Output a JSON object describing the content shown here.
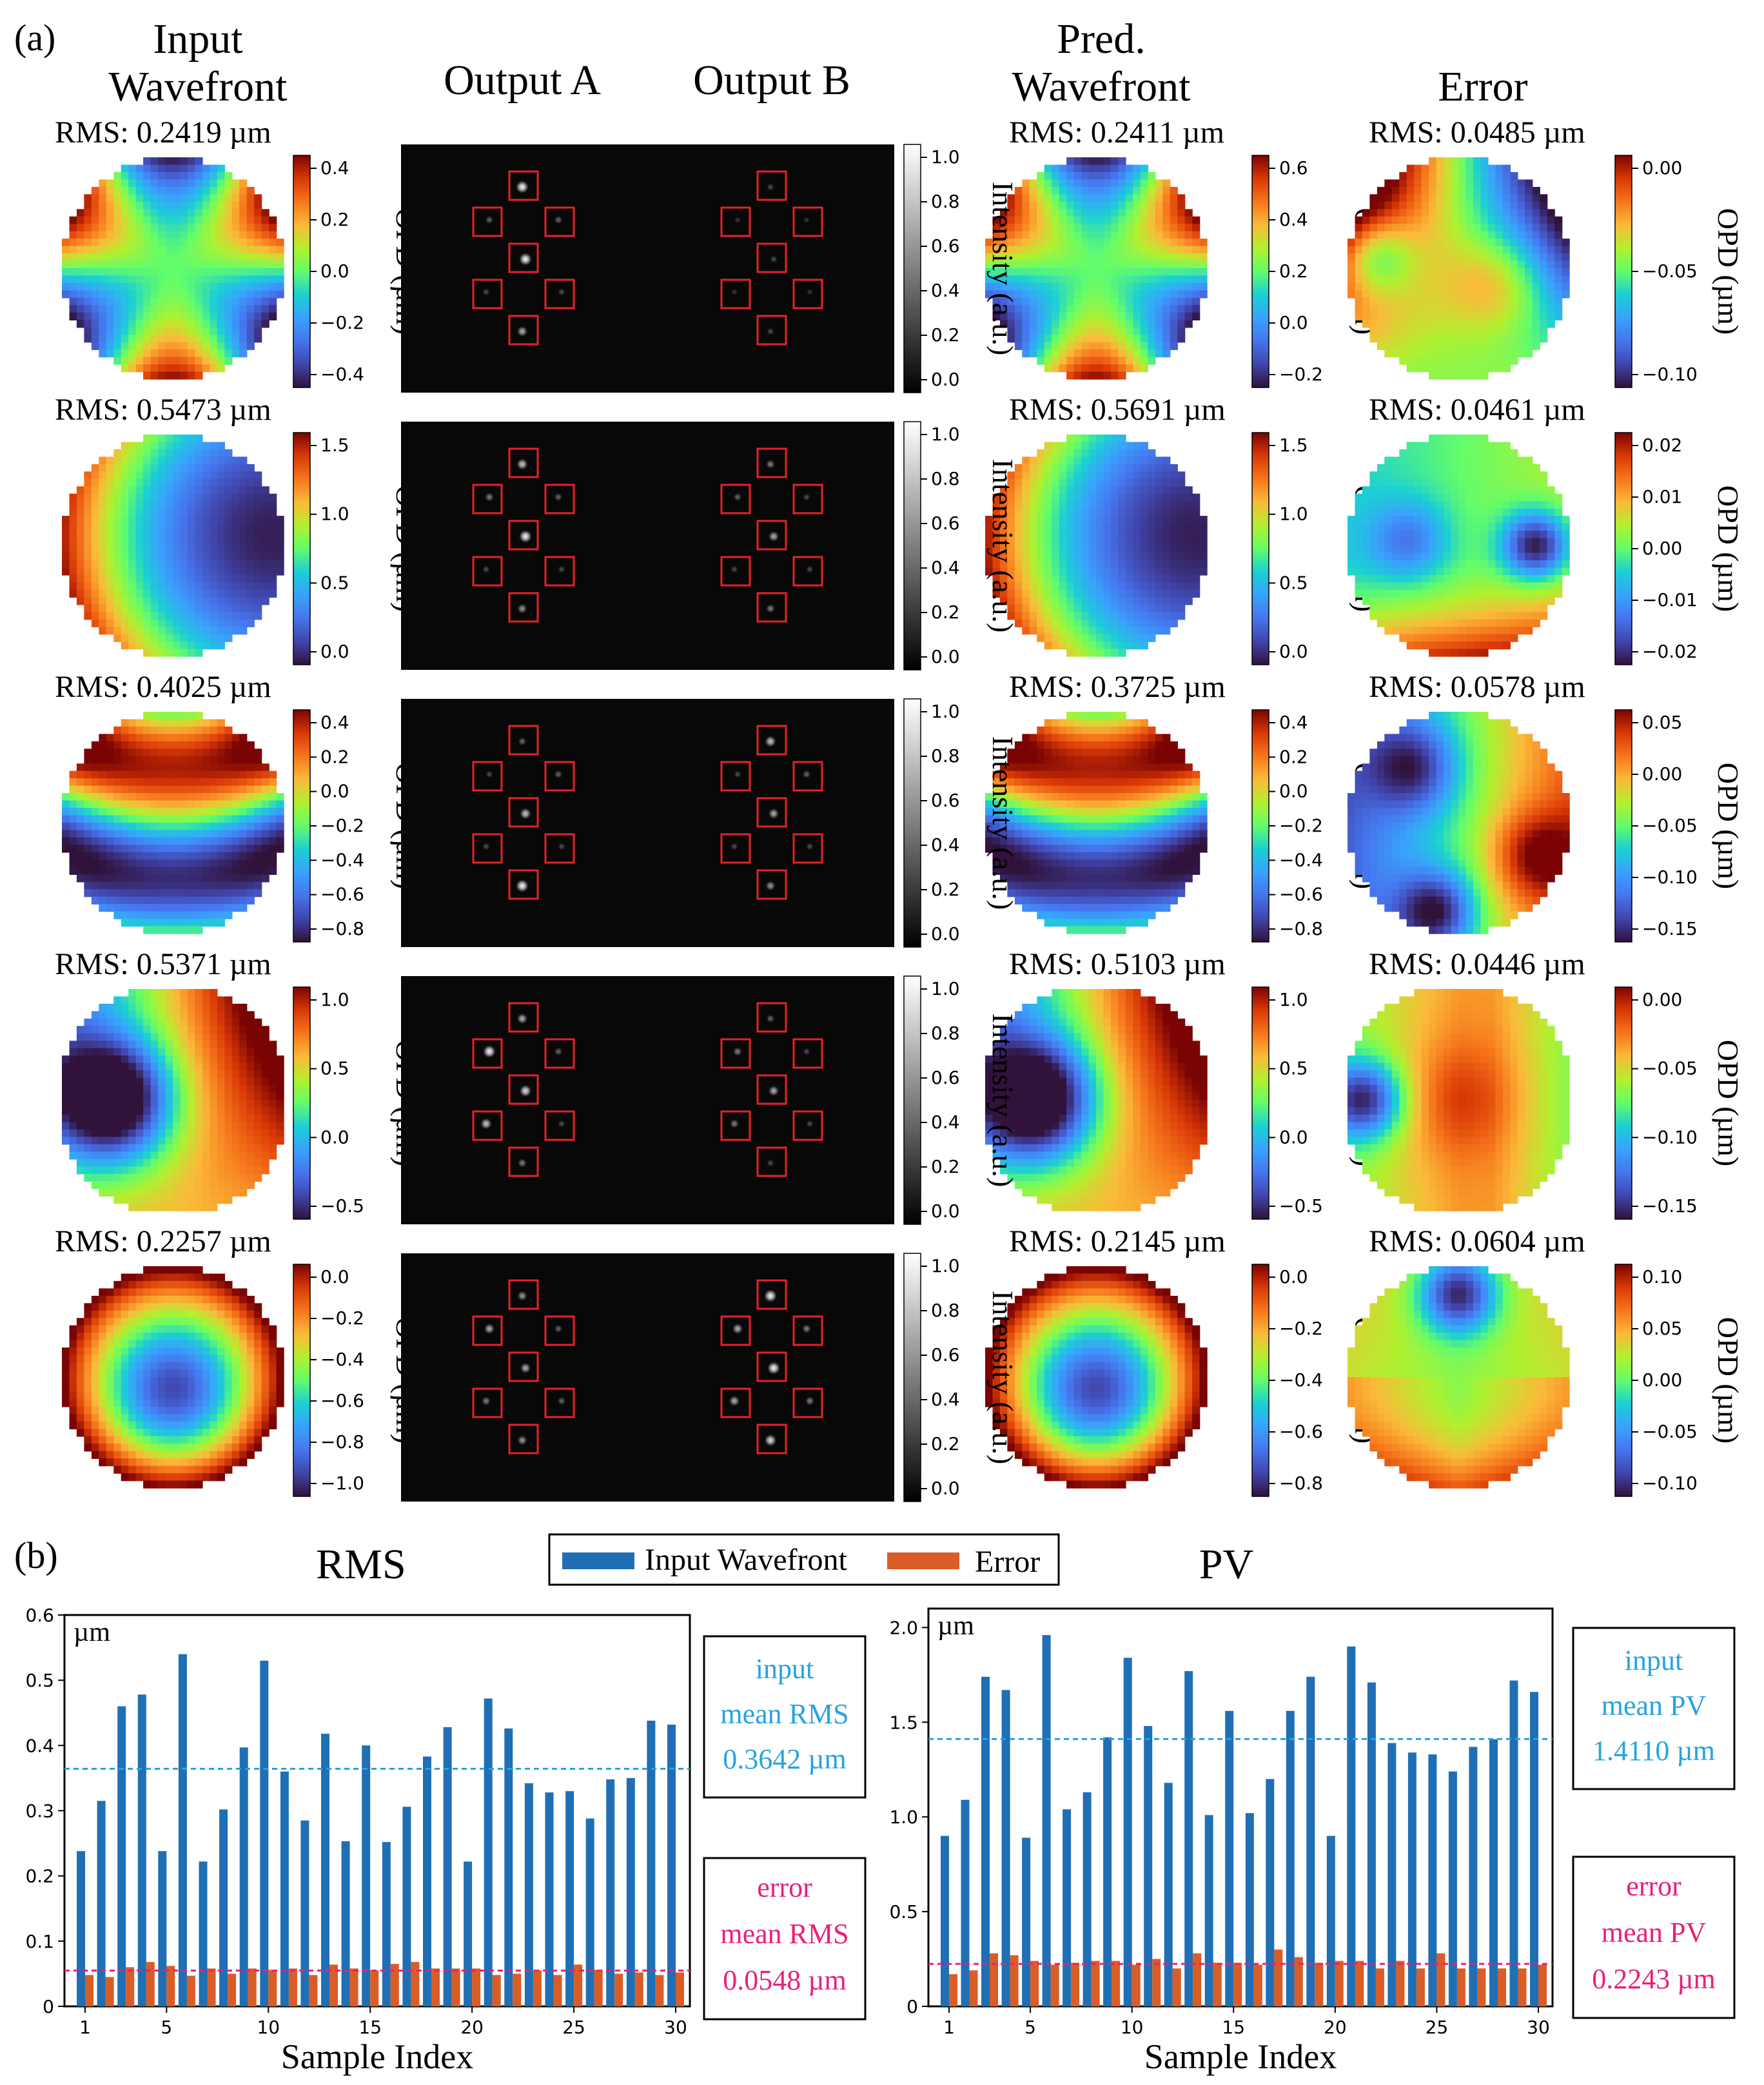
{
  "panel_a": {
    "label": "(a)",
    "column_titles": [
      [
        "Input",
        "Wavefront"
      ],
      [
        "Output A"
      ],
      [
        "Output B"
      ],
      [
        "Pred.",
        "Wavefront"
      ],
      [
        "Error"
      ]
    ],
    "colorbar_label_opd": "OPD (µm)",
    "colorbar_label_intensity": "Intensity (a.u.)",
    "intensity_ticks": [
      "0.0",
      "0.2",
      "0.4",
      "0.6",
      "0.8",
      "1.0"
    ],
    "rows": [
      {
        "input": {
          "rms": "RMS: 0.2419 µm",
          "ticks": [
            "0.4",
            "0.2",
            "0.0",
            "−0.2",
            "−0.4"
          ],
          "pattern": "trefoil",
          "stair": "fine"
        },
        "pred": {
          "rms": "RMS: 0.2411 µm",
          "ticks": [
            "0.6",
            "0.4",
            "0.2",
            "0.0",
            "−0.2"
          ],
          "pattern": "trefoil",
          "stair": "fine"
        },
        "error": {
          "rms": "RMS: 0.0485 µm",
          "ticks": [
            "0.00",
            "−0.05",
            "−0.10"
          ],
          "pattern": "error1",
          "stair": "fine"
        },
        "spots_a": [
          1,
          0.4,
          0.4,
          1,
          0.3,
          0.3,
          0.7
        ],
        "spots_b": [
          0.3,
          0.2,
          0.2,
          0.3,
          0.2,
          0.2,
          0.3
        ]
      },
      {
        "input": {
          "rms": "RMS: 0.5473 µm",
          "ticks": [
            "1.5",
            "1.0",
            "0.5",
            "0.0"
          ],
          "pattern": "tilt_right",
          "stair": "fine"
        },
        "pred": {
          "rms": "RMS: 0.5691 µm",
          "ticks": [
            "1.5",
            "1.0",
            "0.5",
            "0.0"
          ],
          "pattern": "tilt_right",
          "stair": "fine"
        },
        "error": {
          "rms": "RMS: 0.0461 µm",
          "ticks": [
            "0.02",
            "0.01",
            "0.00",
            "−0.01",
            "−0.02"
          ],
          "pattern": "error2",
          "stair": "fine"
        },
        "spots_a": [
          0.8,
          0.5,
          0.4,
          1,
          0.3,
          0.3,
          0.6
        ],
        "spots_b": [
          0.5,
          0.4,
          0.3,
          0.7,
          0.3,
          0.3,
          0.5
        ]
      },
      {
        "input": {
          "rms": "RMS: 0.4025 µm",
          "ticks": [
            "0.4",
            "0.2",
            "0.0",
            "−0.2",
            "−0.4",
            "−0.6",
            "−0.8"
          ],
          "pattern": "bands",
          "stair": "fine"
        },
        "pred": {
          "rms": "RMS: 0.3725 µm",
          "ticks": [
            "0.4",
            "0.2",
            "0.0",
            "−0.2",
            "−0.4",
            "−0.6",
            "−0.8"
          ],
          "pattern": "bands",
          "stair": "fine"
        },
        "error": {
          "rms": "RMS: 0.0578 µm",
          "ticks": [
            "0.05",
            "0.00",
            "−0.05",
            "−0.10",
            "−0.15"
          ],
          "pattern": "error3",
          "stair": "fine"
        },
        "spots_a": [
          0.4,
          0.3,
          0.4,
          0.8,
          0.3,
          0.3,
          1
        ],
        "spots_b": [
          0.8,
          0.3,
          0.4,
          0.7,
          0.3,
          0.3,
          0.6
        ]
      },
      {
        "input": {
          "rms": "RMS: 0.5371 µm",
          "ticks": [
            "1.0",
            "0.5",
            "0.0",
            "−0.5"
          ],
          "pattern": "left_hole",
          "stair": "coarse"
        },
        "pred": {
          "rms": "RMS: 0.5103 µm",
          "ticks": [
            "1.0",
            "0.5",
            "0.0",
            "−0.5"
          ],
          "pattern": "left_hole",
          "stair": "coarse"
        },
        "error": {
          "rms": "RMS: 0.0446 µm",
          "ticks": [
            "0.00",
            "−0.05",
            "−0.10",
            "−0.15"
          ],
          "pattern": "error4",
          "stair": "coarse"
        },
        "spots_a": [
          0.7,
          1,
          0.4,
          0.9,
          0.8,
          0.3,
          0.5
        ],
        "spots_b": [
          0.4,
          0.5,
          0.3,
          0.7,
          0.5,
          0.3,
          0.3
        ]
      },
      {
        "input": {
          "rms": "RMS: 0.2257 µm",
          "ticks": [
            "0.0",
            "−0.2",
            "−0.4",
            "−0.6",
            "−0.8",
            "−1.0"
          ],
          "pattern": "bowl",
          "stair": "fine"
        },
        "pred": {
          "rms": "RMS: 0.2145 µm",
          "ticks": [
            "0.0",
            "−0.2",
            "−0.4",
            "−0.6",
            "−0.8"
          ],
          "pattern": "bowl",
          "stair": "fine"
        },
        "error": {
          "rms": "RMS: 0.0604 µm",
          "ticks": [
            "0.10",
            "0.05",
            "0.00",
            "−0.05",
            "−0.10"
          ],
          "pattern": "error5",
          "stair": "fine"
        },
        "spots_a": [
          0.6,
          0.7,
          0.4,
          0.7,
          0.5,
          0.4,
          0.6
        ],
        "spots_b": [
          1,
          0.7,
          0.5,
          1,
          0.7,
          0.5,
          0.9
        ]
      }
    ]
  },
  "panel_b": {
    "label": "(b)",
    "legend": {
      "input": "Input Wavefront",
      "error": "Error"
    },
    "colors": {
      "input": "#1f6fb5",
      "error": "#d95d27",
      "input_mean_line": "#27a3dc",
      "error_mean_line": "#e8207a",
      "input_text": "#27a3dc",
      "error_text": "#e8207a"
    }
  },
  "chart_data": [
    {
      "type": "bar",
      "title": "RMS",
      "xlabel": "Sample Index",
      "ylabel": "µm",
      "ylim": [
        0,
        0.6
      ],
      "yticks": [
        "0",
        "0.1",
        "0.2",
        "0.3",
        "0.4",
        "0.5",
        "0.6"
      ],
      "xticks": [
        "1",
        "5",
        "10",
        "15",
        "20",
        "25",
        "30"
      ],
      "x": [
        1,
        2,
        3,
        4,
        5,
        6,
        7,
        8,
        9,
        10,
        11,
        12,
        13,
        14,
        15,
        16,
        17,
        18,
        19,
        20,
        21,
        22,
        23,
        24,
        25,
        26,
        27,
        28,
        29,
        30
      ],
      "series": [
        {
          "name": "Input Wavefront",
          "values": [
            0.238,
            0.315,
            0.46,
            0.478,
            0.238,
            0.54,
            0.222,
            0.302,
            0.397,
            0.53,
            0.36,
            0.285,
            0.418,
            0.253,
            0.4,
            0.252,
            0.306,
            0.383,
            0.428,
            0.222,
            0.472,
            0.426,
            0.342,
            0.328,
            0.33,
            0.288,
            0.348,
            0.35,
            0.438,
            0.432
          ]
        },
        {
          "name": "Error",
          "values": [
            0.048,
            0.045,
            0.06,
            0.068,
            0.062,
            0.047,
            0.058,
            0.05,
            0.058,
            0.056,
            0.058,
            0.048,
            0.064,
            0.058,
            0.055,
            0.065,
            0.068,
            0.058,
            0.058,
            0.058,
            0.048,
            0.05,
            0.055,
            0.048,
            0.064,
            0.056,
            0.05,
            0.052,
            0.048,
            0.052
          ]
        }
      ],
      "mean_input": 0.3642,
      "mean_error": 0.0548,
      "annotations": {
        "input": [
          "input",
          "mean RMS",
          "0.3642 µm"
        ],
        "error": [
          "error",
          "mean RMS",
          "0.0548 µm"
        ]
      }
    },
    {
      "type": "bar",
      "title": "PV",
      "xlabel": "Sample Index",
      "ylabel": "µm",
      "ylim": [
        0,
        2.1
      ],
      "yticks": [
        "0",
        "0.5",
        "1.0",
        "1.5",
        "2.0"
      ],
      "xticks": [
        "1",
        "5",
        "10",
        "15",
        "20",
        "25",
        "30"
      ],
      "x": [
        1,
        2,
        3,
        4,
        5,
        6,
        7,
        8,
        9,
        10,
        11,
        12,
        13,
        14,
        15,
        16,
        17,
        18,
        19,
        20,
        21,
        22,
        23,
        24,
        25,
        26,
        27,
        28,
        29,
        30
      ],
      "series": [
        {
          "name": "Input Wavefront",
          "values": [
            0.9,
            1.09,
            1.74,
            1.67,
            0.89,
            1.96,
            1.04,
            1.13,
            1.42,
            1.84,
            1.48,
            1.18,
            1.77,
            1.01,
            1.56,
            1.02,
            1.2,
            1.56,
            1.74,
            0.9,
            1.9,
            1.71,
            1.39,
            1.34,
            1.33,
            1.24,
            1.37,
            1.41,
            1.72,
            1.66
          ]
        },
        {
          "name": "Error",
          "values": [
            0.17,
            0.19,
            0.28,
            0.27,
            0.24,
            0.22,
            0.23,
            0.24,
            0.24,
            0.22,
            0.25,
            0.2,
            0.28,
            0.23,
            0.23,
            0.22,
            0.3,
            0.26,
            0.23,
            0.24,
            0.24,
            0.2,
            0.24,
            0.2,
            0.28,
            0.2,
            0.2,
            0.2,
            0.2,
            0.22
          ]
        }
      ],
      "mean_input": 1.411,
      "mean_error": 0.2243,
      "annotations": {
        "input": [
          "input",
          "mean PV",
          "1.4110 µm"
        ],
        "error": [
          "error",
          "mean PV",
          "0.2243 µm"
        ]
      }
    }
  ]
}
